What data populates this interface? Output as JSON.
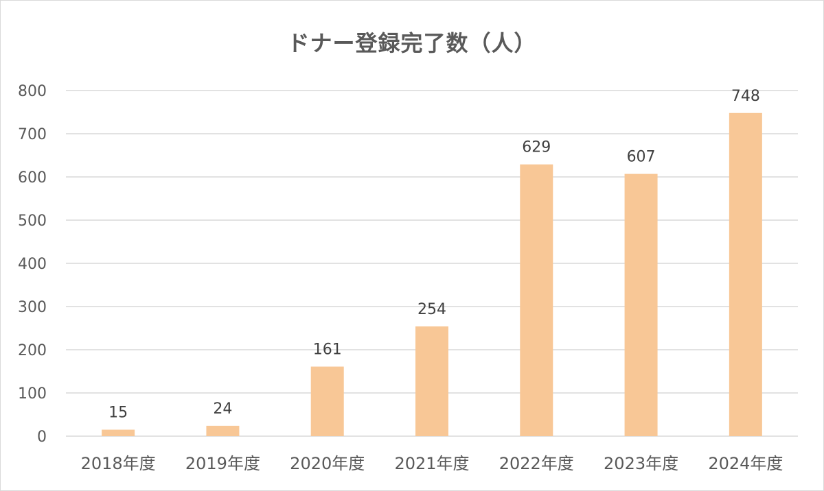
{
  "chart_data": {
    "type": "bar",
    "title": "ドナー登録完了数（人）",
    "xlabel": "",
    "ylabel": "",
    "categories": [
      "2018年度",
      "2019年度",
      "2020年度",
      "2021年度",
      "2022年度",
      "2023年度",
      "2024年度"
    ],
    "values": [
      15,
      24,
      161,
      254,
      629,
      607,
      748
    ],
    "ylim": [
      0,
      800
    ],
    "yticks": [
      0,
      100,
      200,
      300,
      400,
      500,
      600,
      700,
      800
    ],
    "grid": true,
    "legend": "none",
    "data_labels": true,
    "colors": {
      "bar": "#f8c796",
      "grid": "#d9d9d9",
      "text": "#595959",
      "data_label": "#404040"
    }
  }
}
